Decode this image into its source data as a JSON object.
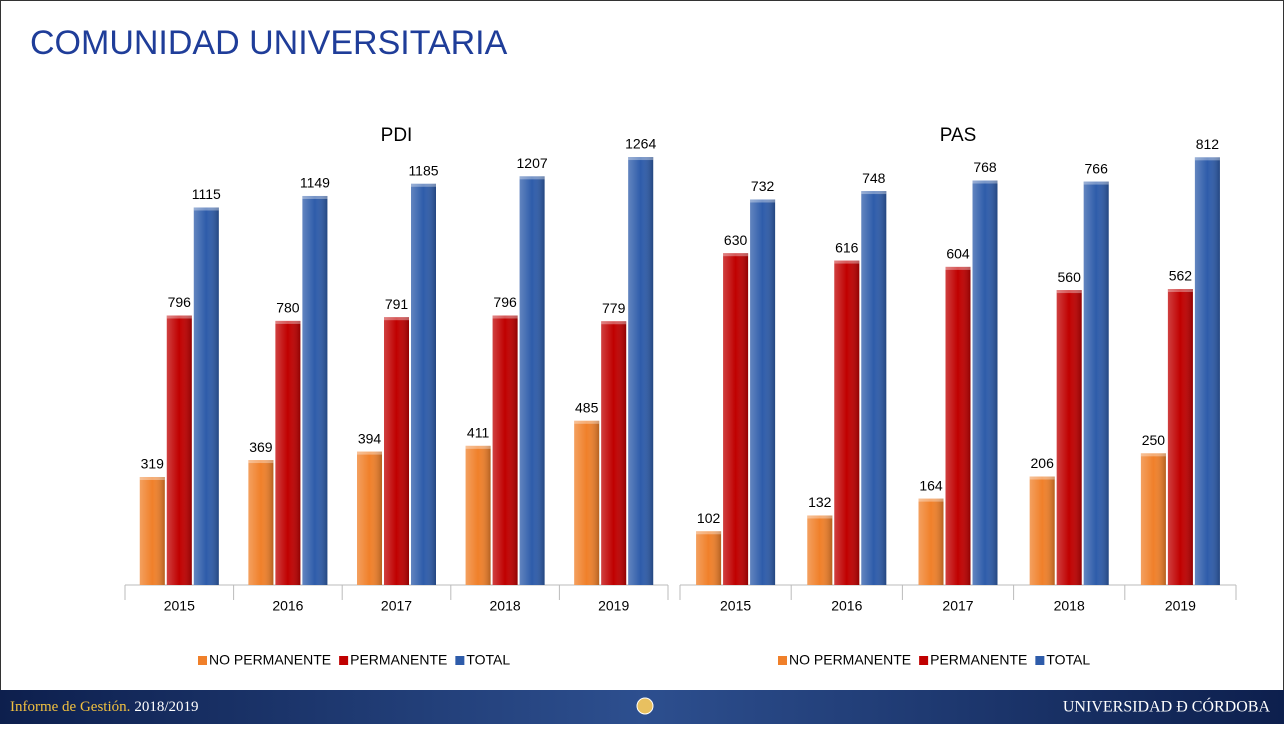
{
  "title": "COMUNIDAD UNIVERSITARIA",
  "footer": {
    "left": "Informe de Gestión.",
    "left_year": "2018/2019",
    "right": "UNIVERSIDAD Ð CÓRDOBA"
  },
  "chart_data": [
    {
      "type": "bar",
      "title": "PDI",
      "categories": [
        "2015",
        "2016",
        "2017",
        "2018",
        "2019"
      ],
      "ylim": [
        0,
        1400
      ],
      "series": [
        {
          "name": "NO PERMANENTE",
          "color": "#f0802a",
          "values": [
            319,
            369,
            394,
            411,
            485
          ]
        },
        {
          "name": "PERMANENTE",
          "color": "#c00000",
          "values": [
            796,
            780,
            791,
            796,
            779
          ]
        },
        {
          "name": "TOTAL",
          "color": "#2e5caa",
          "values": [
            1115,
            1149,
            1185,
            1207,
            1264
          ]
        }
      ]
    },
    {
      "type": "bar",
      "title": "PAS",
      "categories": [
        "2015",
        "2016",
        "2017",
        "2018",
        "2019"
      ],
      "ylim": [
        0,
        900
      ],
      "series": [
        {
          "name": "NO PERMANENTE",
          "color": "#f0802a",
          "values": [
            102,
            132,
            164,
            206,
            250
          ]
        },
        {
          "name": "PERMANENTE",
          "color": "#c00000",
          "values": [
            630,
            616,
            604,
            560,
            562
          ]
        },
        {
          "name": "TOTAL",
          "color": "#2e5caa",
          "values": [
            732,
            748,
            768,
            766,
            812
          ]
        }
      ]
    }
  ]
}
